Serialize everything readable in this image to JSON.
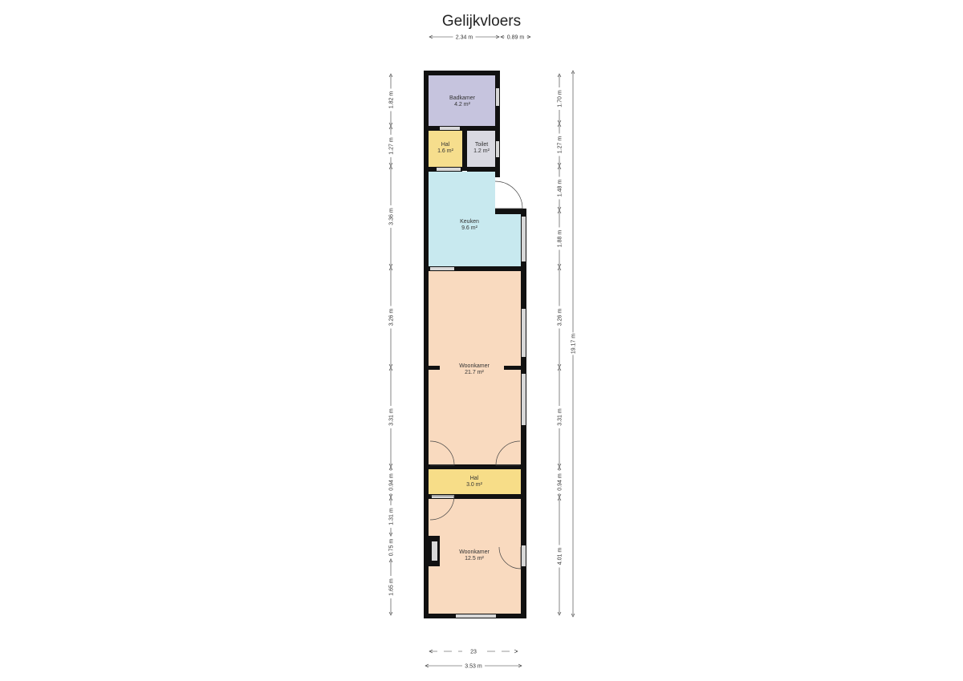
{
  "title": "Gelijkvloers",
  "rooms": [
    {
      "name": "Badkamer",
      "area": "4.2 m²",
      "color": "#c6c4de"
    },
    {
      "name": "Hal",
      "area": "1.6 m²",
      "color": "#f6de8d"
    },
    {
      "name": "Toilet",
      "area": "1.2 m²",
      "color": "#d9d9e1"
    },
    {
      "name": "Keuken",
      "area": "9.6 m²",
      "color": "#c8e9ef"
    },
    {
      "name": "Woonkamer",
      "area": "21.7 m²",
      "color": "#f9dabf"
    },
    {
      "name": "Hal",
      "area": "3.0 m²",
      "color": "#f7dd88"
    },
    {
      "name": "Woonkamer",
      "area": "12.5 m²",
      "color": "#f9dabf"
    }
  ],
  "dimensions": {
    "top": [
      "2.34 m",
      "0.89 m"
    ],
    "left": [
      "1.82 m",
      "1.27 m",
      "3.36 m",
      "3.26 m",
      "3.31 m",
      "0.94 m",
      "1.31 m",
      "0.75 m",
      "1.65 m"
    ],
    "right": [
      "1.70 m",
      "1.27 m",
      "1.48 m",
      "1.88 m",
      "3.26 m",
      "3.31 m",
      "0.94 m",
      "4.01 m"
    ],
    "total_height": "19.17 m",
    "bottom": [
      "23",
      "3.53 m"
    ]
  },
  "colors": {
    "wall": "#111111",
    "window": "#d8d8d8"
  }
}
